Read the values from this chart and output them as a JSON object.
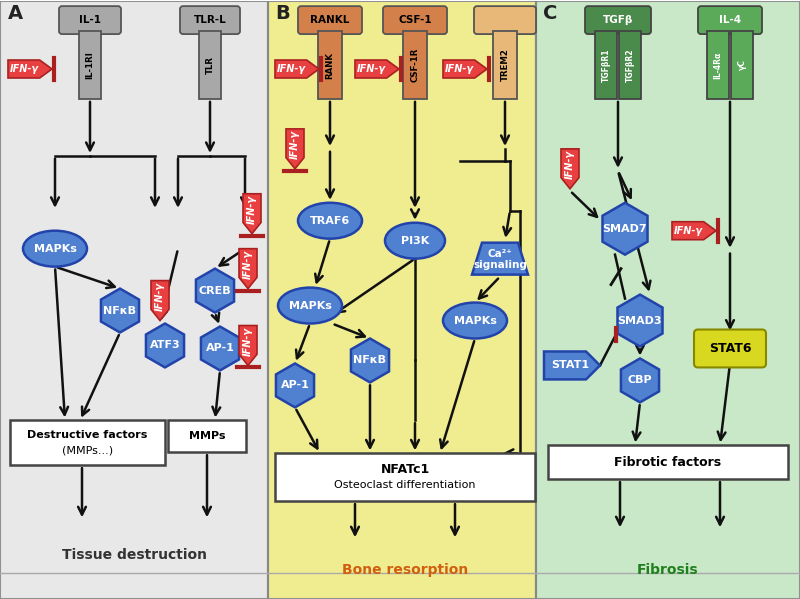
{
  "bg_A": "#e8e8e8",
  "bg_B": "#f0ec90",
  "bg_C": "#c8e8c8",
  "receptor_gray": "#a8a8a8",
  "receptor_orange_dark": "#d4804a",
  "receptor_orange_light": "#e8b878",
  "receptor_green_dark": "#4a8a4a",
  "receptor_green_light": "#5aaa5a",
  "node_blue_fill": "#5080d0",
  "node_blue_edge": "#2244aa",
  "node_yellow_fill": "#d8d820",
  "ifn_fill": "#e84040",
  "ifn_edge": "#aa2020",
  "arrow_color": "#111111",
  "bottom_text_A": "Tissue destruction",
  "bottom_text_B": "Bone resorption",
  "bottom_text_C": "Fibrosis",
  "panel_div1": 268,
  "panel_div2": 536
}
